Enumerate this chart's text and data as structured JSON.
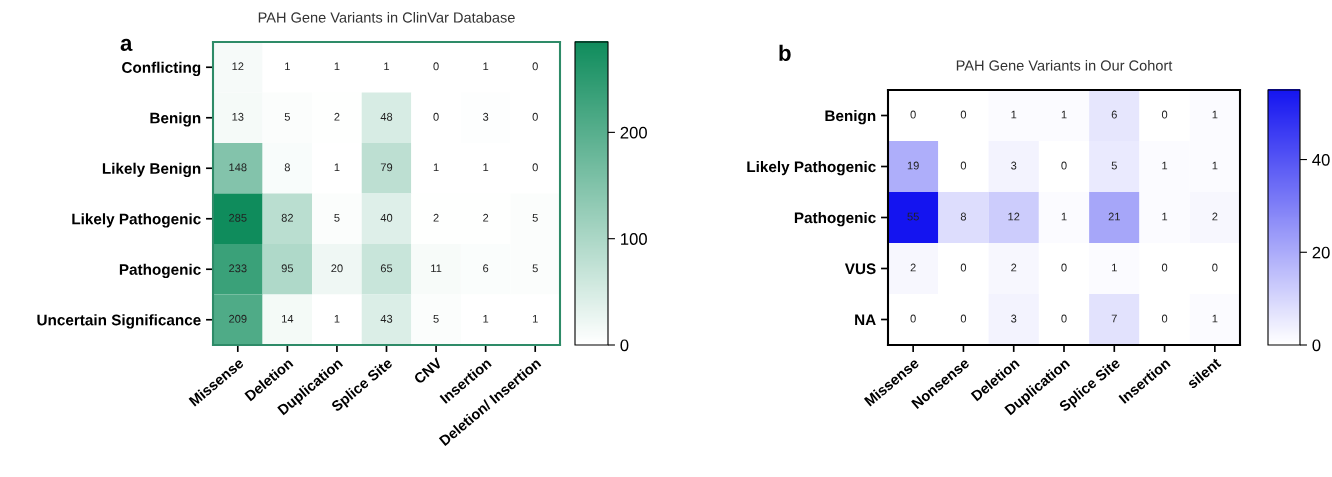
{
  "chart_data": [
    {
      "type": "heatmap",
      "title": "PAH Gene Variants in ClinVar Database",
      "annotations": [
        "a"
      ],
      "categories": [
        "Missense",
        "Deletion",
        "Duplication",
        "Splice Site",
        "CNV",
        "Insertion",
        "Deletion/ Insertion"
      ],
      "y_categories": [
        "Conflicting",
        "Benign",
        "Likely Benign",
        "Likely Pathogenic",
        "Pathogenic",
        "Uncertain Significance"
      ],
      "cells": [
        [
          12,
          1,
          1,
          1,
          0,
          1,
          0
        ],
        [
          13,
          5,
          2,
          48,
          0,
          3,
          0
        ],
        [
          148,
          8,
          1,
          79,
          1,
          1,
          0
        ],
        [
          285,
          82,
          5,
          40,
          2,
          2,
          5
        ],
        [
          233,
          95,
          20,
          65,
          11,
          6,
          5
        ],
        [
          209,
          14,
          1,
          43,
          5,
          1,
          1
        ]
      ],
      "colors": [
        "#ffffff",
        "#0f8c5c"
      ],
      "color": "#2e8b68",
      "clim": [
        0,
        285
      ],
      "cticks": [
        0,
        100,
        200
      ],
      "data_labels": true
    },
    {
      "type": "heatmap",
      "title": "PAH Gene Variants in Our Cohort",
      "annotations": [
        "b"
      ],
      "categories": [
        "Missense",
        "Nonsense",
        "Deletion",
        "Duplication",
        "Splice Site",
        "Insertion",
        "silent"
      ],
      "y_categories": [
        "Benign",
        "Likely Pathogenic",
        "Pathogenic",
        "VUS",
        "NA"
      ],
      "cells": [
        [
          0,
          0,
          1,
          1,
          6,
          0,
          1
        ],
        [
          19,
          0,
          3,
          0,
          5,
          1,
          1
        ],
        [
          55,
          8,
          12,
          1,
          21,
          1,
          2
        ],
        [
          2,
          0,
          2,
          0,
          1,
          0,
          0
        ],
        [
          0,
          0,
          3,
          0,
          7,
          0,
          1
        ]
      ],
      "colors": [
        "#ffffff",
        "#1414f0"
      ],
      "color": "#000000",
      "clim": [
        0,
        55
      ],
      "cticks": [
        0,
        20,
        40
      ],
      "data_labels": true
    }
  ]
}
